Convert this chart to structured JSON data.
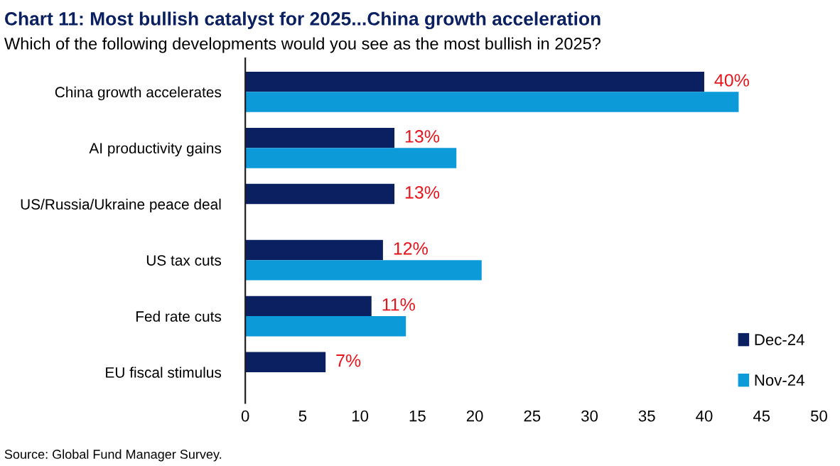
{
  "chart_data": {
    "type": "bar",
    "orientation": "horizontal",
    "title": "Chart 11: Most bullish catalyst for 2025...China growth acceleration",
    "subtitle": "Which of the following developments would you see as the most bullish in 2025?",
    "categories": [
      "China growth accelerates",
      "AI productivity gains",
      "US/Russia/Ukraine peace deal",
      "US tax cuts",
      "Fed rate cuts",
      "EU fiscal stimulus"
    ],
    "series": [
      {
        "name": "Dec-24",
        "color": "#0b2060",
        "values": [
          40,
          13,
          13,
          12,
          11,
          7
        ],
        "value_labels": [
          "40%",
          "13%",
          "13%",
          "12%",
          "11%",
          "7%"
        ]
      },
      {
        "name": "Nov-24",
        "color": "#0c9ad8",
        "values": [
          43,
          18.4,
          null,
          20.6,
          14,
          null
        ]
      }
    ],
    "xlim": [
      0,
      50
    ],
    "xticks": [
      0,
      5,
      10,
      15,
      20,
      25,
      30,
      35,
      40,
      45,
      50
    ],
    "grid": false,
    "legend": "bottom right",
    "annotations": [
      "Source: Global Fund Manager Survey."
    ]
  }
}
